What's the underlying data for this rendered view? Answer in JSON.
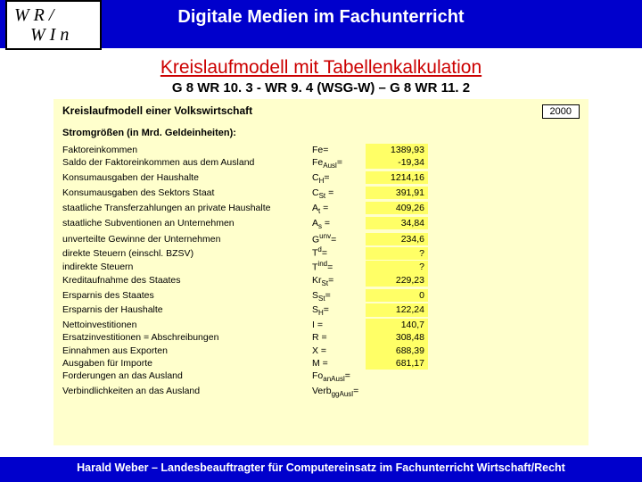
{
  "logo": {
    "line1": "W R  /",
    "line2": "W I n"
  },
  "header_title": "Digitale Medien im Fachunterricht",
  "subtitle_main": "Kreislaufmodell mit Tabellenkalkulation",
  "subtitle_sub": "G 8 WR 10. 3 - WR 9. 4 (WSG-W) – G 8 WR 11. 2",
  "table": {
    "title": "Kreislaufmodell einer Volkswirtschaft",
    "year": "2000",
    "section": "Stromgrößen (in Mrd. Geldeinheiten):",
    "rows": [
      {
        "label": "Faktoreinkommen",
        "symbol": "Fe=",
        "value": "1389,93"
      },
      {
        "label": "Saldo der Faktoreinkommen aus dem Ausland",
        "symbol": "Fe_Ausl=",
        "value": "-19,34"
      },
      {
        "label": "Konsumausgaben der Haushalte",
        "symbol": "C_H=",
        "value": "1214,16"
      },
      {
        "label": "Konsumausgaben des Sektors Staat",
        "symbol": "C_St =",
        "value": "391,91"
      },
      {
        "label": "staatliche Transferzahlungen an private Haushalte",
        "symbol": "A_t =",
        "value": "409,26"
      },
      {
        "label": "staatliche Subventionen an Unternehmen",
        "symbol": "A_s =",
        "value": "34,84"
      },
      {
        "label": "unverteilte Gewinne der Unternehmen",
        "symbol": "G^unv=",
        "value": "234,6"
      },
      {
        "label": "direkte Steuern (einschl. BZSV)",
        "symbol": "T^d=",
        "value": "?"
      },
      {
        "label": "indirekte Steuern",
        "symbol": "T^ind=",
        "value": "?"
      },
      {
        "label": "Kreditaufnahme des Staates",
        "symbol": "Kr_St=",
        "value": "229,23"
      },
      {
        "label": "Ersparnis des Staates",
        "symbol": "S_St=",
        "value": "0"
      },
      {
        "label": "Ersparnis der Haushalte",
        "symbol": "S_H=",
        "value": "122,24"
      },
      {
        "label": "Nettoinvestitionen",
        "symbol": "I =",
        "value": "140,7"
      },
      {
        "label": "Ersatzinvestitionen = Abschreibungen",
        "symbol": "R =",
        "value": "308,48"
      },
      {
        "label": "Einnahmen aus Exporten",
        "symbol": "X =",
        "value": "688,39"
      },
      {
        "label": "Ausgaben für Importe",
        "symbol": "M =",
        "value": "681,17"
      },
      {
        "label": "Forderungen an das Ausland",
        "symbol": "Fo_anAusl=",
        "value": ""
      },
      {
        "label": "Verbindlichkeiten an das Ausland",
        "symbol": "Verb_ggAusl=",
        "value": ""
      }
    ]
  },
  "footer": "Harald Weber – Landesbeauftragter für Computereinsatz im Fachunterricht Wirtschaft/Recht",
  "colors": {
    "header_bg": "#0000cc",
    "subtitle_color": "#cc0000",
    "table_bg": "#ffffcc",
    "value_bg": "#ffff66"
  }
}
